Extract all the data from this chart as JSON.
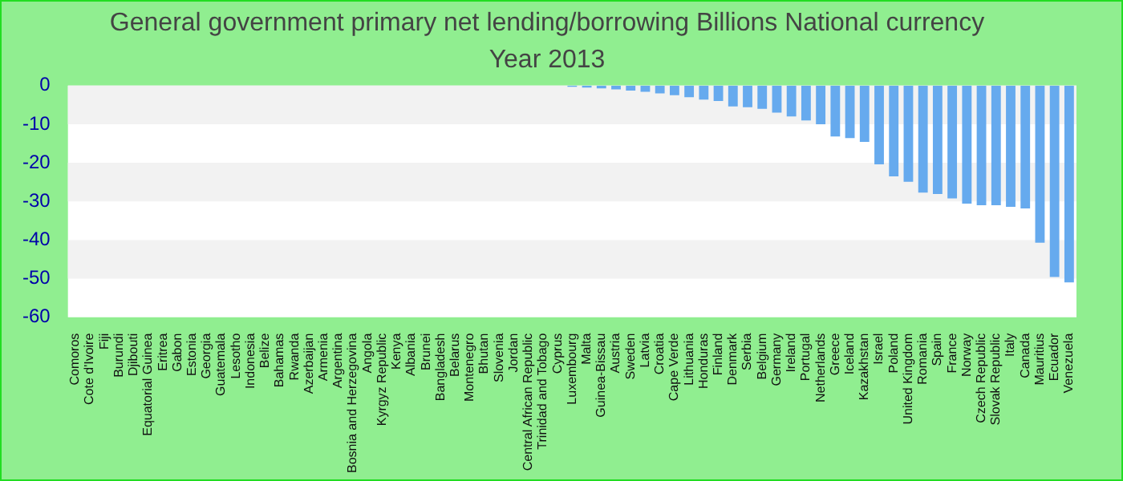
{
  "chart_data": {
    "type": "bar",
    "title": "General government primary net lending/borrowing Billions National currency",
    "subtitle": "Year 2013",
    "categories": [
      "Comoros",
      "Cote d'Ivoire",
      "Fiji",
      "Burundi",
      "Djibouti",
      "Equatorial Guinea",
      "Eritrea",
      "Gabon",
      "Estonia",
      "Georgia",
      "Guatemala",
      "Lesotho",
      "Indonesia",
      "Belize",
      "Bahamas",
      "Rwanda",
      "Azerbaijan",
      "Armenia",
      "Argentina",
      "Bosnia and Herzegovina",
      "Angola",
      "Kyrgyz Republic",
      "Kenya",
      "Albania",
      "Brunei",
      "Bangladesh",
      "Belarus",
      "Montenegro",
      "Bhutan",
      "Slovenia",
      "Jordan",
      "Central African Republic",
      "Trinidad and Tobago",
      "Cyprus",
      "Luxembourg",
      "Malta",
      "Guinea-Bissau",
      "Austria",
      "Sweden",
      "Latvia",
      "Croatia",
      "Cape Verde",
      "Lithuania",
      "Honduras",
      "Finland",
      "Denmark",
      "Serbia",
      "Belgium",
      "Germany",
      "Ireland",
      "Portugal",
      "Netherlands",
      "Greece",
      "Iceland",
      "Kazakhstan",
      "Israel",
      "Poland",
      "United Kingdom",
      "Romania",
      "Spain",
      "France",
      "Norway",
      "Czech Republic",
      "Slovak Republic",
      "Italy",
      "Canada",
      "Mauritius",
      "Ecuador",
      "Venezuela"
    ],
    "values": [
      0,
      0,
      0,
      0,
      0,
      0,
      0,
      0,
      0,
      0,
      0,
      0,
      0,
      0,
      0,
      0,
      0,
      0,
      0,
      0,
      0,
      0,
      0,
      0,
      0,
      0,
      0,
      0,
      0,
      0,
      0,
      0,
      0,
      0,
      -0.3,
      -0.5,
      -0.7,
      -1,
      -1.3,
      -1.6,
      -2,
      -2.5,
      -3,
      -3.6,
      -4,
      -5.4,
      -5.6,
      -6,
      -7,
      -8,
      -9,
      -10,
      -13.2,
      -13.6,
      -14.6,
      -20.4,
      -23.5,
      -24.9,
      -27.7,
      -28.1,
      -29.2,
      -30.6,
      -31,
      -31,
      -31.4,
      -31.8,
      -40.7,
      -49.6,
      -51
    ],
    "color": "#66aaee",
    "ylim": [
      -60,
      0
    ],
    "yticks": [
      -60,
      -50,
      -40,
      -30,
      -20,
      -10,
      0
    ]
  }
}
